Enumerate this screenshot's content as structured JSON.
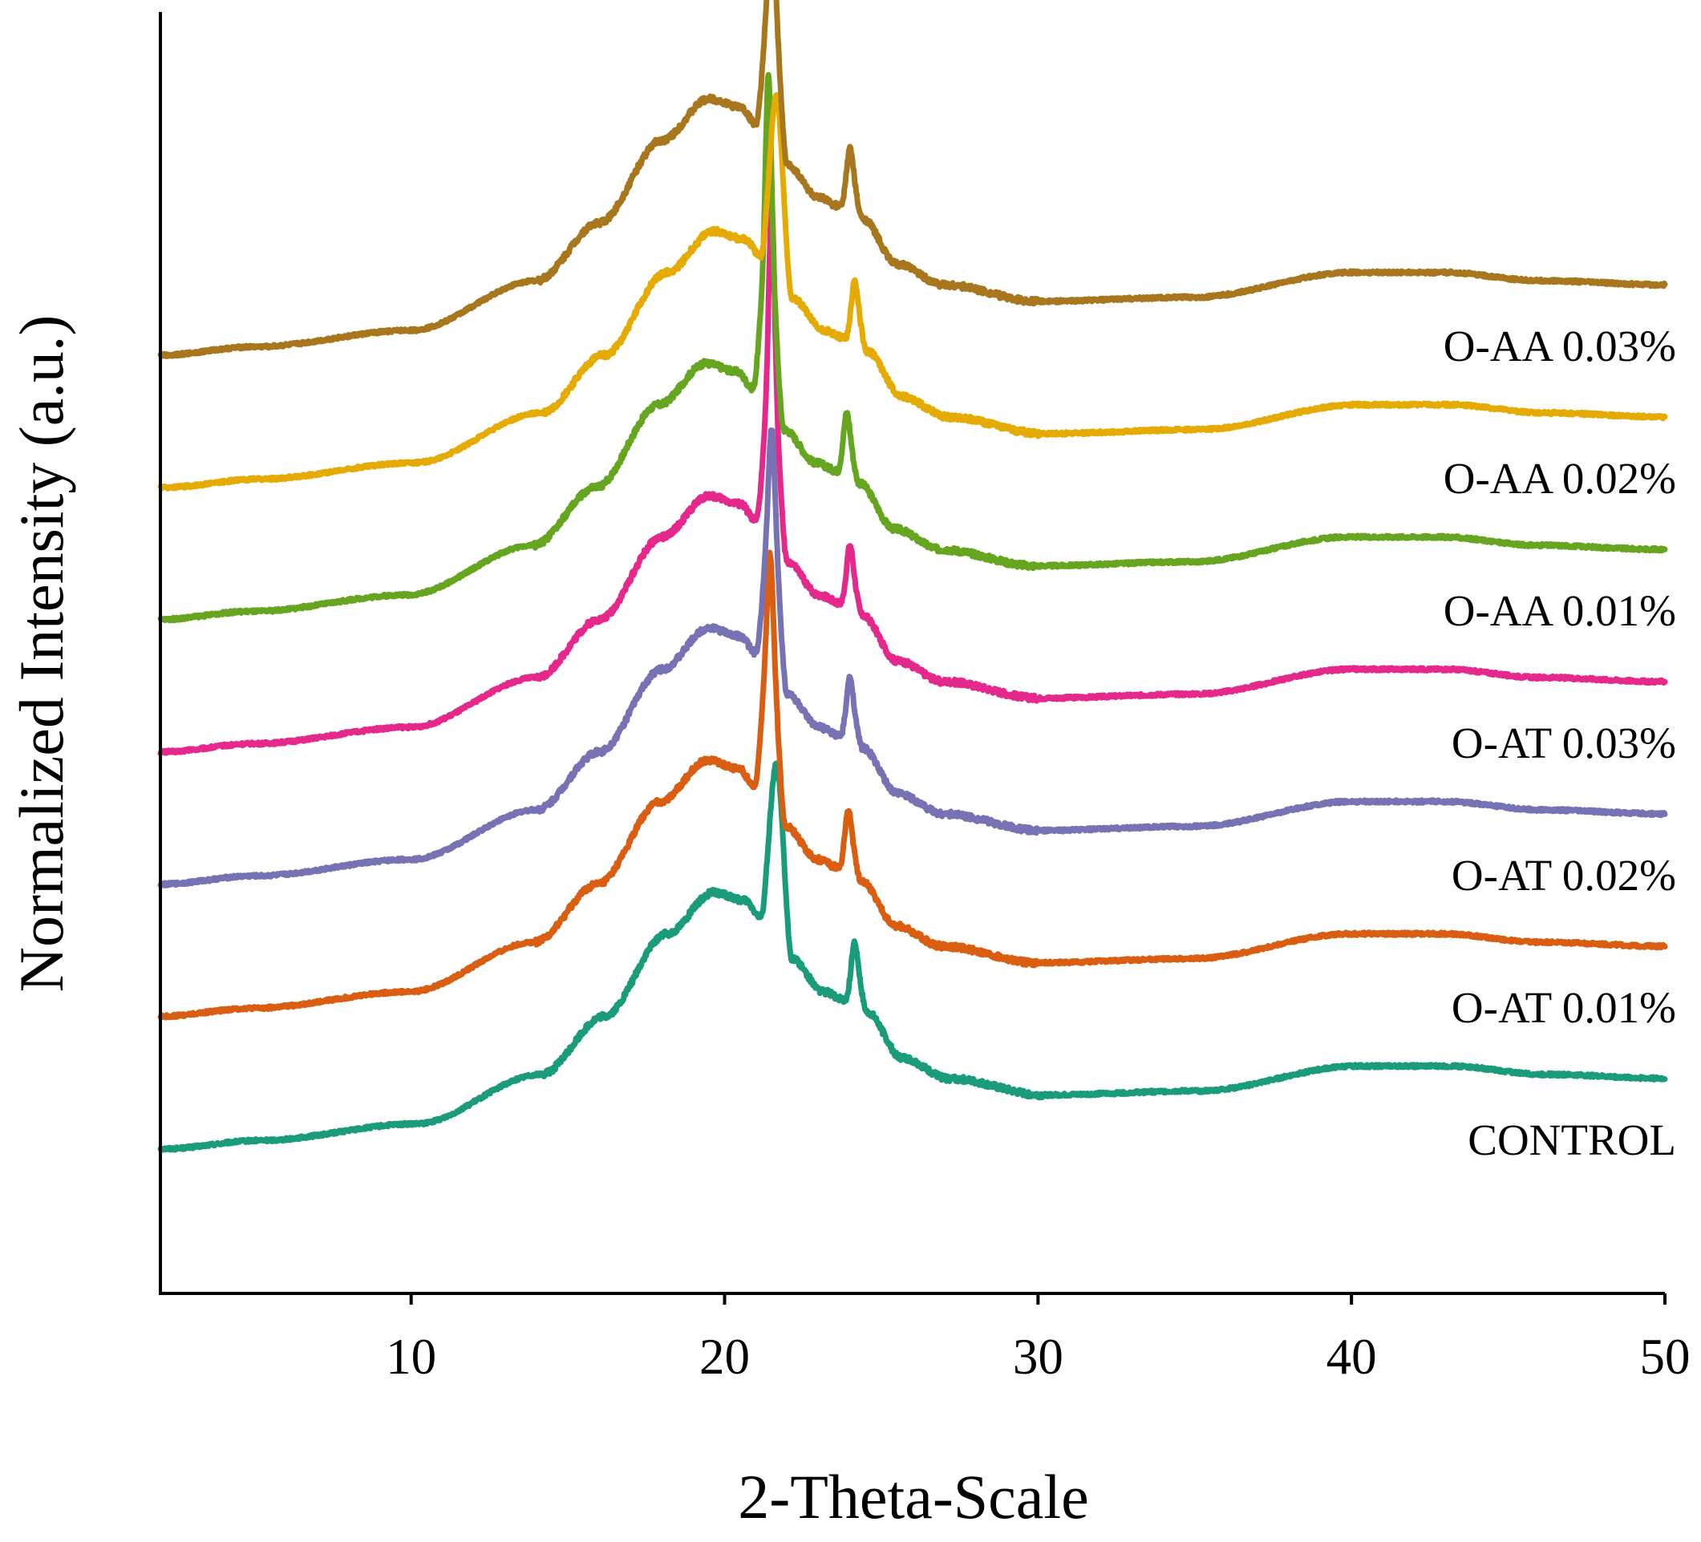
{
  "chart_data": {
    "type": "line",
    "title": "",
    "xlabel": "2-Theta-Scale",
    "ylabel": "Normalized Intensity (a.u.)",
    "xlim": [
      2,
      50
    ],
    "ylim": [
      -0.35,
      2.75
    ],
    "xticks": [
      10,
      20,
      30,
      40,
      50
    ],
    "yticks_shown": false,
    "grid": false,
    "legend": "inline labels at right end of each curve",
    "shape_keypoints": {
      "x": [
        2,
        5,
        10,
        14,
        16,
        18,
        19.5,
        20.5,
        21.0,
        21.5,
        22.0,
        23.0,
        23.7,
        24.0,
        24.4,
        25.5,
        27,
        30,
        35,
        40,
        43,
        46,
        50
      ],
      "profile": [
        0,
        0.02,
        0.06,
        0.18,
        0.32,
        0.52,
        0.62,
        0.6,
        0.56,
        0.93,
        0.46,
        0.38,
        0.36,
        0.45,
        0.33,
        0.22,
        0.17,
        0.13,
        0.14,
        0.2,
        0.2,
        0.18,
        0.17
      ]
    },
    "series": [
      {
        "name": "CONTROL",
        "offset": 0.0,
        "peak_shift": 0.15,
        "main_peak": 0.93,
        "color": "#1a9c7a"
      },
      {
        "name": "O-AT 0.01%",
        "offset": 0.32,
        "peak_shift": -0.05,
        "main_peak": 1.12,
        "color": "#d95e12"
      },
      {
        "name": "O-AT 0.02%",
        "offset": 0.64,
        "peak_shift": 0.0,
        "main_peak": 1.1,
        "color": "#7672b3"
      },
      {
        "name": "O-AT 0.03%",
        "offset": 0.96,
        "peak_shift": 0.0,
        "main_peak": 1.32,
        "color": "#e5288b"
      },
      {
        "name": "O-AA 0.01%",
        "offset": 1.28,
        "peak_shift": -0.1,
        "main_peak": 1.32,
        "color": "#66a51f"
      },
      {
        "name": "O-AA 0.02%",
        "offset": 1.6,
        "peak_shift": 0.15,
        "main_peak": 0.95,
        "color": "#e6ab03"
      },
      {
        "name": "O-AA 0.03%",
        "offset": 1.92,
        "peak_shift": 0.0,
        "main_peak": 1.1,
        "color": "#a7761d"
      }
    ]
  }
}
